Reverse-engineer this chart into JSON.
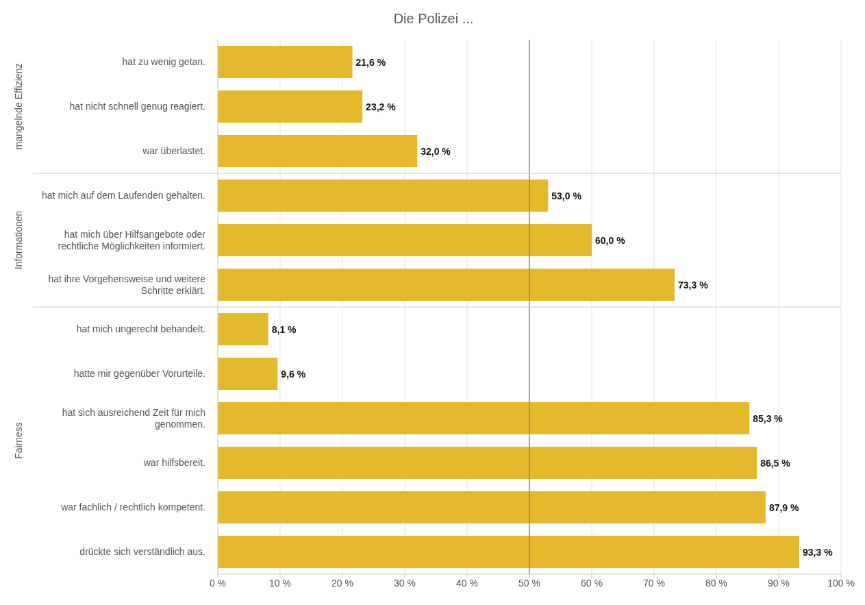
{
  "chart_data": {
    "type": "bar",
    "orientation": "horizontal",
    "title": "Die Polizei ...",
    "categories": [
      "hat zu wenig getan.",
      "hat nicht schnell genug reagiert.",
      "war überlastet.",
      "hat mich auf dem Laufenden gehalten.",
      "hat mich über Hilfsangebote oder rechtliche Möglichkeiten informiert.",
      "hat ihre Vorgehensweise und weitere Schritte erklärt.",
      "hat mich ungerecht behandelt.",
      "hatte mir gegenüber Vorurteile.",
      "hat sich ausreichend Zeit für mich genommen.",
      "war hilfsbereit.",
      "war fachlich / rechtlich kompetent.",
      "drückte sich verständlich aus."
    ],
    "values": [
      21.6,
      23.2,
      32.0,
      53.0,
      60.0,
      73.3,
      8.1,
      9.6,
      85.3,
      86.5,
      87.9,
      93.3
    ],
    "value_labels": [
      "21,6 %",
      "23,2 %",
      "32,0 %",
      "53,0 %",
      "60,0 %",
      "73,3 %",
      "8,1 %",
      "9,6 %",
      "85,3 %",
      "86,5 %",
      "87,9 %",
      "93,3 %"
    ],
    "color": "#e5b92c",
    "xlim": [
      0,
      100
    ],
    "xticks": [
      {
        "value": 0,
        "label": "0 %"
      },
      {
        "value": 10,
        "label": "10 %"
      },
      {
        "value": 20,
        "label": "20 %"
      },
      {
        "value": 30,
        "label": "30 %"
      },
      {
        "value": 40,
        "label": "40 %"
      },
      {
        "value": 50,
        "label": "50 %"
      },
      {
        "value": 60,
        "label": "60 %"
      },
      {
        "value": 70,
        "label": "70 %"
      },
      {
        "value": 80,
        "label": "80 %"
      },
      {
        "value": 90,
        "label": "90 %"
      },
      {
        "value": 100,
        "label": "100 %"
      }
    ],
    "grid": "x",
    "ref_lines": [
      {
        "axis": "x",
        "value": 50,
        "color": "#888888"
      }
    ],
    "annotations": [
      "mangelnde Effizienz",
      "Informationen",
      "Fairness"
    ]
  }
}
